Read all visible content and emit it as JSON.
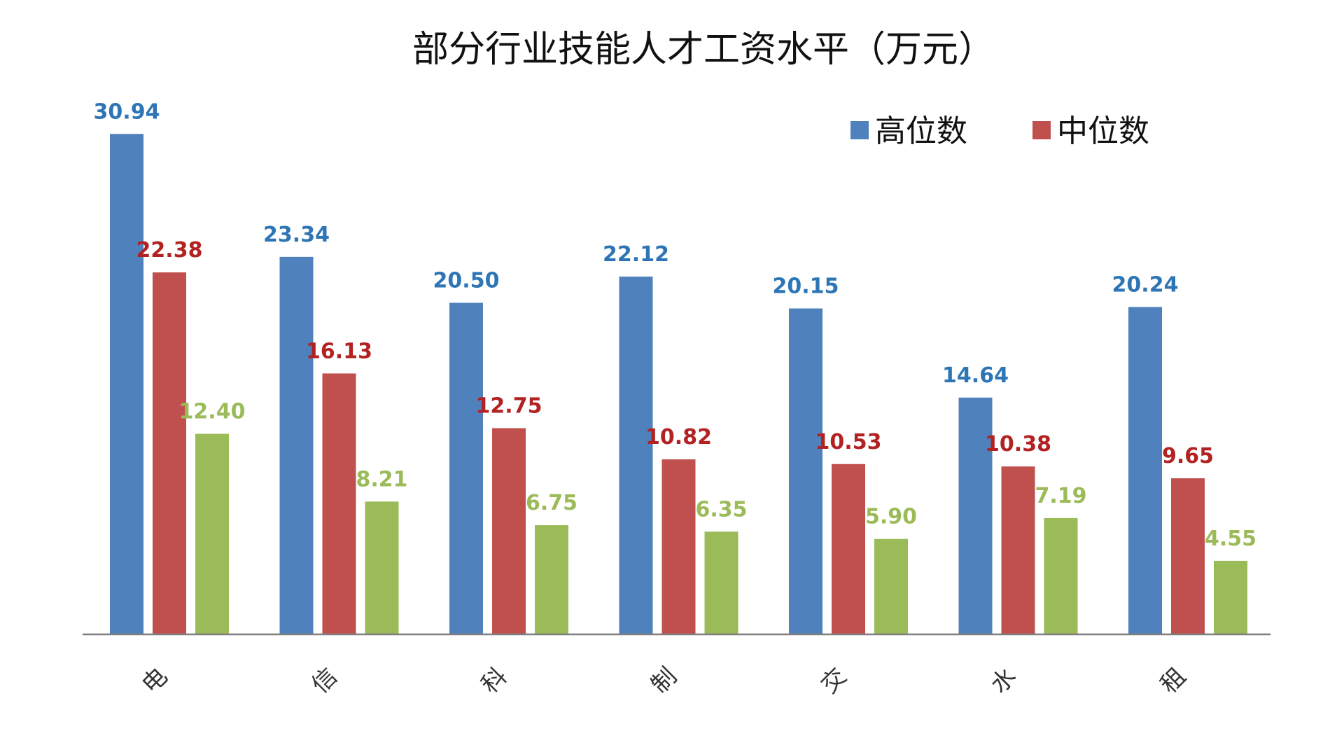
{
  "chart_data": {
    "type": "bar",
    "title": "部分行业技能人才工资水平（万元）",
    "categories": [
      "电",
      "信",
      "科",
      "制",
      "交",
      "水",
      "租"
    ],
    "series": [
      {
        "name": "高位数",
        "values": [
          30.94,
          23.34,
          20.5,
          22.12,
          20.15,
          14.64,
          20.24
        ],
        "labels": [
          "30.94",
          "23.34",
          "20.50",
          "22.12",
          "20.15",
          "14.64",
          "20.24"
        ]
      },
      {
        "name": "中位数",
        "values": [
          22.38,
          16.13,
          12.75,
          10.82,
          10.53,
          10.38,
          9.65
        ],
        "labels": [
          "22.38",
          "16.13",
          "12.75",
          "10.82",
          "10.53",
          "10.38",
          "9.65"
        ]
      },
      {
        "name": "",
        "values": [
          12.4,
          8.21,
          6.75,
          6.35,
          5.9,
          7.19,
          4.55
        ],
        "labels": [
          "12.40",
          "8.21",
          "6.75",
          "6.35",
          "5.90",
          "7.19",
          "4.55"
        ]
      }
    ],
    "colors": [
      "#4f81bd",
      "#c0504d",
      "#9bbb59"
    ],
    "label_colors": [
      "#2e75b6",
      "#b22222",
      "#9bbb59"
    ],
    "ylim": [
      0,
      32
    ],
    "grid": false,
    "legend": "top-right"
  }
}
